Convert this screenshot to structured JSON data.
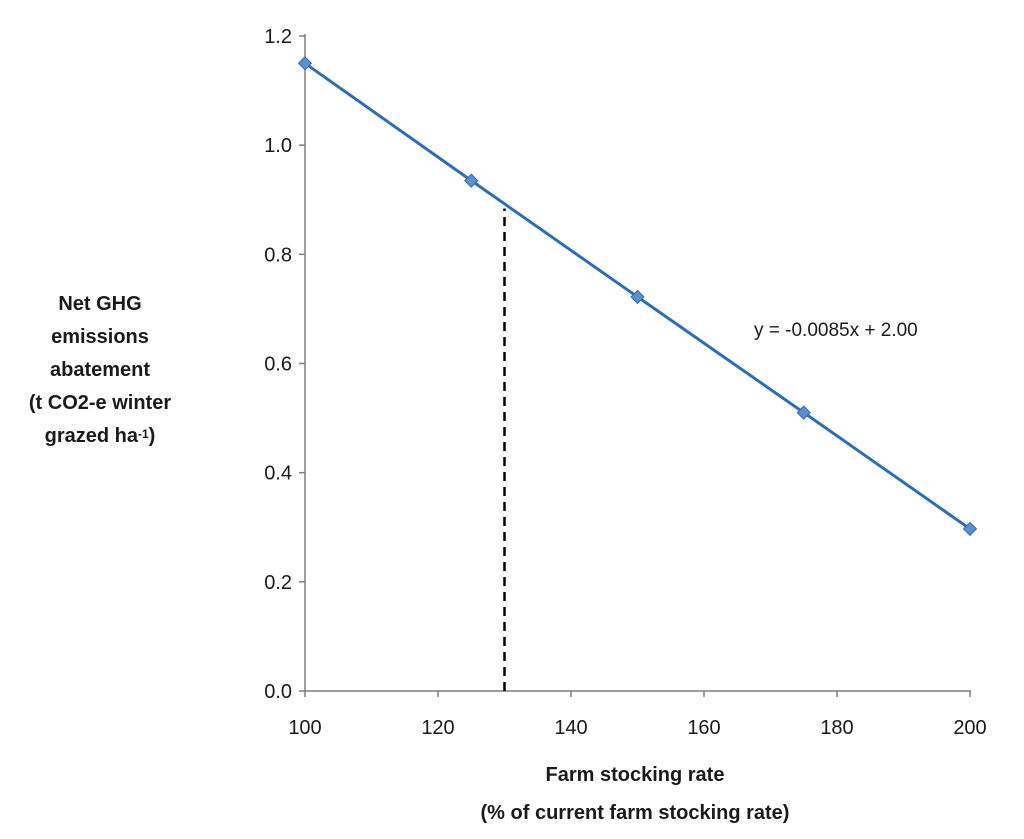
{
  "chart_data": {
    "type": "line",
    "x": [
      100,
      125,
      150,
      175,
      200
    ],
    "series": [
      {
        "values": [
          1.15,
          0.935,
          0.722,
          0.51,
          0.297
        ]
      }
    ],
    "series_color": "#2e6db4",
    "marker_color": "#5b8fd0",
    "trendline": {
      "slope": -0.0085,
      "intercept": 2.0,
      "label": "y = -0.0085x + 2.00"
    },
    "reference_line": {
      "x": 130,
      "style": "dashed",
      "color": "#000000"
    },
    "xlim": [
      100,
      200
    ],
    "ylim": [
      0.0,
      1.2
    ],
    "x_ticks": [
      "100",
      "120",
      "140",
      "160",
      "180",
      "200"
    ],
    "y_ticks": [
      "0.0",
      "0.2",
      "0.4",
      "0.6",
      "0.8",
      "1.0",
      "1.2"
    ],
    "ylabel_lines": [
      "Net GHG",
      "emissions",
      "abatement",
      "(t CO2-e winter",
      "grazed ha",
      "-1",
      ")"
    ],
    "xlabel": "Farm stocking rate",
    "xlabel_sub": "(% of current farm stocking rate)",
    "grid": false
  }
}
